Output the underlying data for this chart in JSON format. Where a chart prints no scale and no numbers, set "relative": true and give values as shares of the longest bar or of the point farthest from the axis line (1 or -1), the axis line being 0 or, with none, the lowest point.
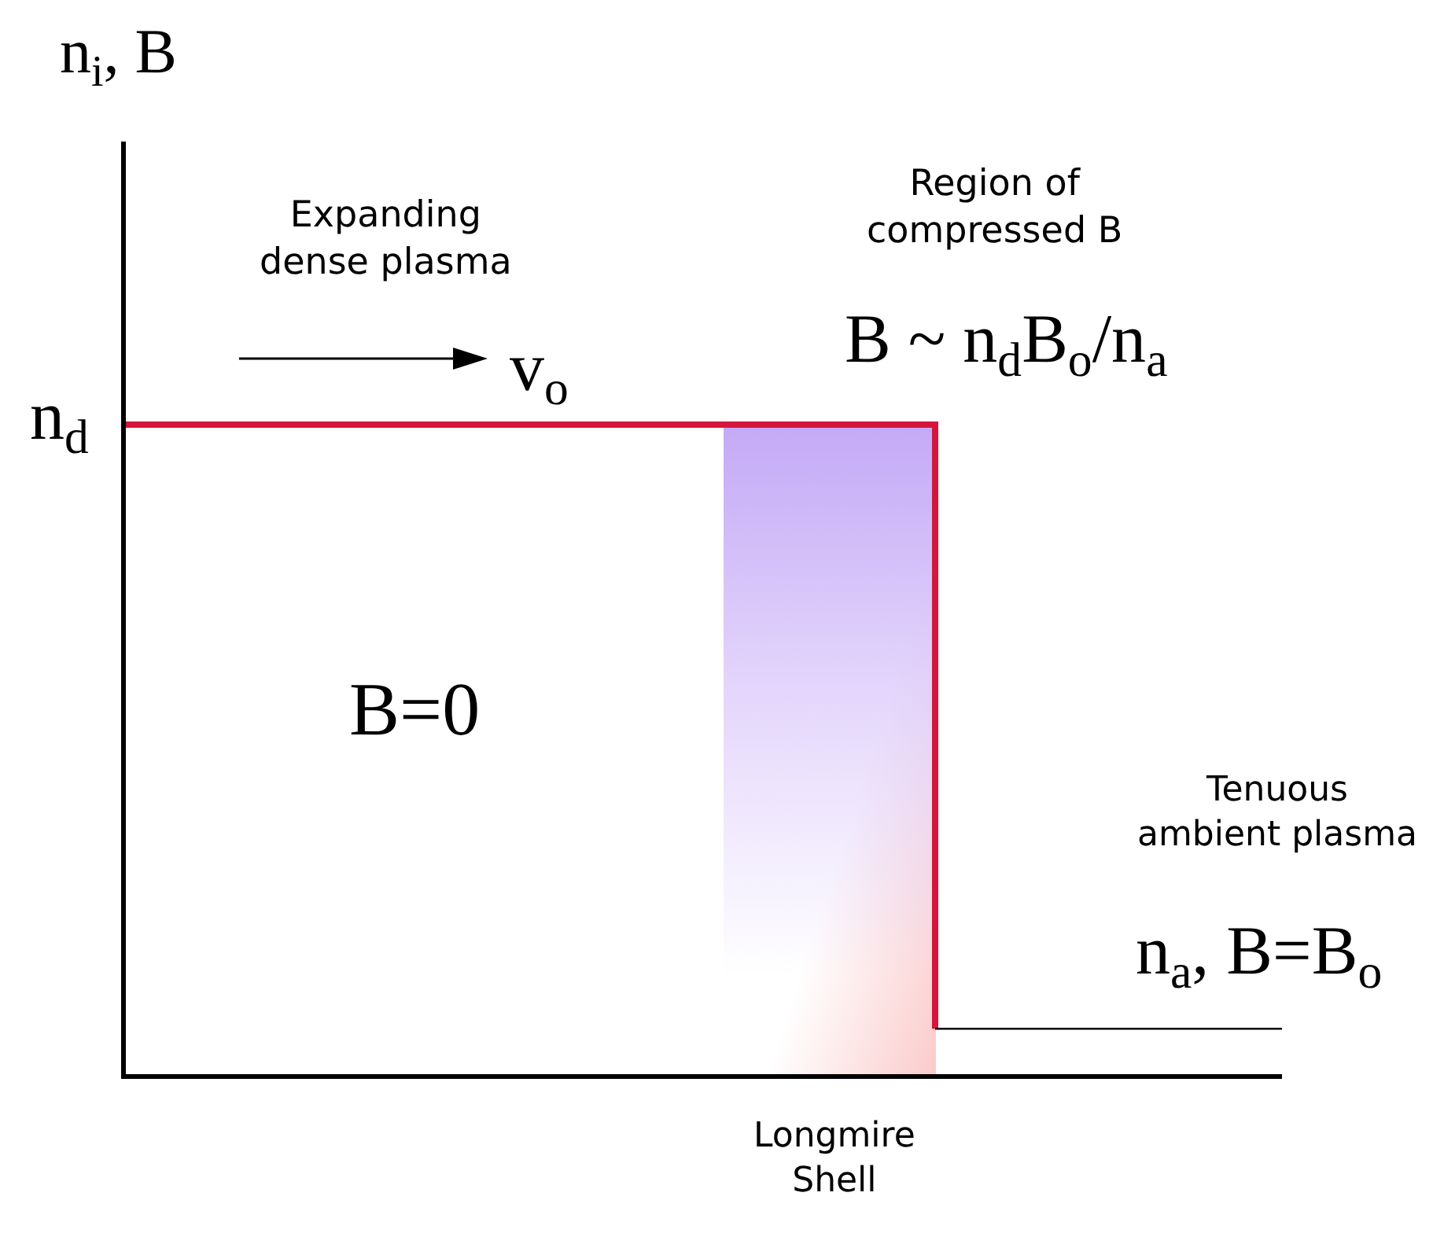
{
  "chart_data": {
    "type": "step",
    "relative": true,
    "categories": [
      null,
      null,
      null,
      null,
      null,
      null,
      null,
      null,
      null,
      null,
      null
    ],
    "series": [
      {
        "color": "#d4163c",
        "values": [
          1,
          1,
          1,
          1,
          1,
          1,
          1,
          0.07,
          null,
          null,
          null
        ]
      },
      {
        "color": "#000000",
        "values": [
          null,
          null,
          null,
          null,
          null,
          null,
          null,
          0.07,
          0.07,
          0.07,
          0.07
        ]
      }
    ],
    "annotations": [
      "n$_{i}$, B",
      "n$_{d}$",
      "Expanding dense plasma",
      "v$_{o}$",
      "Region of compressed B",
      "B ~ n$_{d}$B$_{o}$/n$_{a}$",
      "B=0",
      "Tenuous ambient plasma",
      "n$_{a}$, B=B$_{o}$",
      "Longmire Shell"
    ],
    "grid": false,
    "legend": false
  }
}
